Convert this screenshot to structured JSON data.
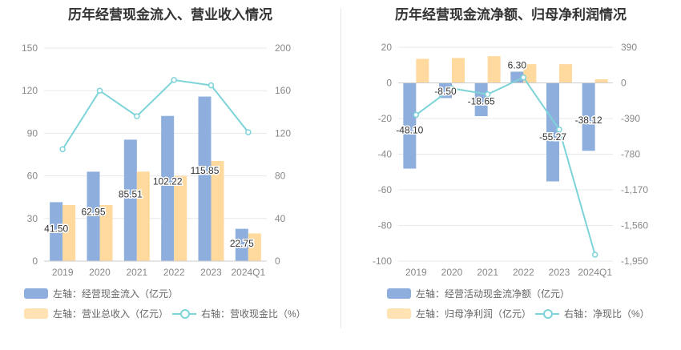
{
  "chart_data": [
    {
      "type": "bar",
      "title": "历年经营现金流入、营业收入情况",
      "categories": [
        "2019",
        "2020",
        "2021",
        "2022",
        "2023",
        "2024Q1"
      ],
      "series": [
        {
          "name": "左轴：经营现金流入（亿元）",
          "axis": "left",
          "type": "bar",
          "color": "#8eaedd",
          "values": [
            41.5,
            62.95,
            85.51,
            102.22,
            115.85,
            22.75
          ],
          "labels": [
            "41.50",
            "62.95",
            "85.51",
            "102.22",
            "115.85",
            "22.75"
          ]
        },
        {
          "name": "左轴：营业总收入（亿元）",
          "axis": "left",
          "type": "bar",
          "color": "#ffd99e",
          "values": [
            39.5,
            39.5,
            63,
            60,
            70.5,
            19.5
          ]
        },
        {
          "name": "右轴：营收现金比（%）",
          "axis": "right",
          "type": "line",
          "color": "#7dd3d8",
          "values": [
            105,
            160,
            136,
            170,
            165,
            121
          ]
        }
      ],
      "y_left": {
        "min": 0,
        "max": 150,
        "ticks": [
          "0",
          "30",
          "60",
          "90",
          "120",
          "150"
        ]
      },
      "y_right": {
        "min": 0,
        "max": 200,
        "ticks": [
          "0",
          "40",
          "80",
          "120",
          "160",
          "200"
        ]
      },
      "legend_position": "bottom"
    },
    {
      "type": "bar",
      "title": "历年经营现金流净额、归母净利润情况",
      "categories": [
        "2019",
        "2020",
        "2021",
        "2022",
        "2023",
        "2024Q1"
      ],
      "series": [
        {
          "name": "左轴：经营活动现金流净额（亿元）",
          "axis": "left",
          "type": "bar",
          "color": "#8eaedd",
          "values": [
            -48.1,
            -8.5,
            -18.65,
            6.3,
            -55.27,
            -38.12
          ],
          "labels": [
            "-48.10",
            "-8.50",
            "-18.65",
            "6.30",
            "-55.27",
            "-38.12"
          ]
        },
        {
          "name": "左轴：归母净利润（亿元）",
          "axis": "left",
          "type": "bar",
          "color": "#ffd99e",
          "values": [
            13.5,
            14,
            15,
            10.5,
            10.5,
            2
          ]
        },
        {
          "name": "右轴：净现比（%）",
          "axis": "right",
          "type": "line",
          "color": "#7dd3d8",
          "values": [
            -350,
            -60,
            -125,
            60,
            -510,
            -1880
          ]
        }
      ],
      "y_left": {
        "min": -100,
        "max": 20,
        "ticks": [
          "-100",
          "-80",
          "-60",
          "-40",
          "-20",
          "0",
          "20"
        ]
      },
      "y_right": {
        "min": -1950,
        "max": 390,
        "ticks": [
          "-1,950",
          "-1,560",
          "-1,170",
          "-780",
          "-390",
          "0",
          "390"
        ]
      },
      "legend_position": "bottom"
    }
  ]
}
